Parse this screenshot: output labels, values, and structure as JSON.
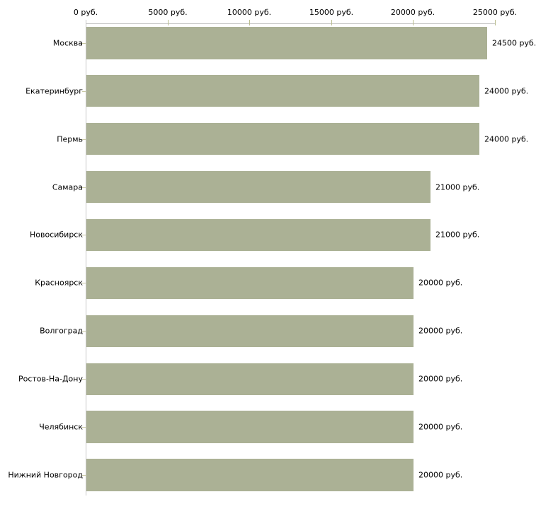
{
  "chart_data": {
    "type": "bar",
    "orientation": "horizontal",
    "title": "",
    "xlabel": "",
    "ylabel": "",
    "grid": false,
    "legend": "none",
    "categories": [
      "Москва",
      "Екатеринбург",
      "Пермь",
      "Самара",
      "Новосибирск",
      "Красноярск",
      "Волгоград",
      "Ростов-На-Дону",
      "Челябинск",
      "Нижний Новгород"
    ],
    "values": [
      24500,
      24000,
      24000,
      21000,
      21000,
      20000,
      20000,
      20000,
      20000,
      20000
    ],
    "value_labels": [
      "24500 руб.",
      "24000 руб.",
      "24000 руб.",
      "21000 руб.",
      "21000 руб.",
      "20000 руб.",
      "20000 руб.",
      "20000 руб.",
      "20000 руб.",
      "20000 руб."
    ],
    "x_axis": {
      "position": "top",
      "min": 0,
      "max": 25000,
      "ticks": [
        0,
        5000,
        10000,
        15000,
        20000,
        25000
      ],
      "tick_labels": [
        "0 руб.",
        "5000 руб.",
        "10000 руб.",
        "15000 руб.",
        "20000 руб.",
        "25000 руб."
      ]
    },
    "colors": {
      "bar": "#abb195",
      "axis_line": "#c6c6c6",
      "axis_tick": "#b9bd8e",
      "category_tick": "#c9c9a3",
      "text": "#000000",
      "background": "#ffffff"
    }
  }
}
